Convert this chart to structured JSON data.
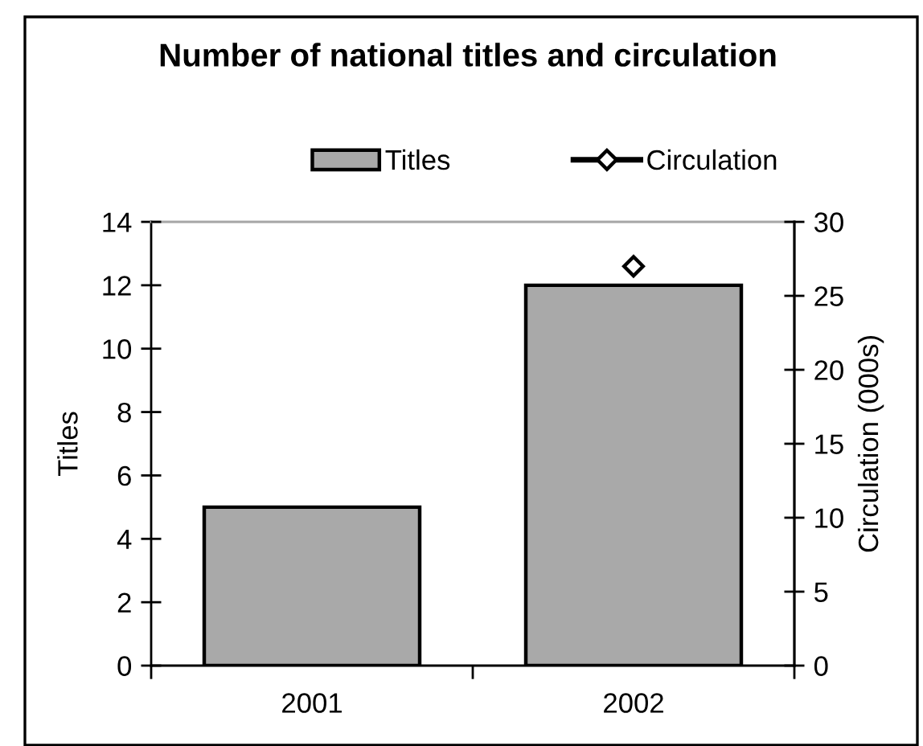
{
  "chart_data": {
    "type": "bar",
    "title": "Number of national titles and circulation",
    "categories": [
      "2001",
      "2002"
    ],
    "ylabel": "Titles",
    "y2label": "Circulation (000s)",
    "series": [
      {
        "name": "Titles",
        "color": "#a9a9a9",
        "values": [
          5,
          12
        ]
      },
      {
        "name": "Circulation",
        "type": "line",
        "axis": "y2",
        "color": "#000000",
        "values": [
          null,
          27
        ]
      }
    ],
    "ylim": [
      0,
      14
    ],
    "yticks": [
      0,
      2,
      4,
      6,
      8,
      10,
      12,
      14
    ],
    "y2lim": [
      0,
      30
    ],
    "y2ticks": [
      0,
      5,
      10,
      15,
      20,
      25,
      30
    ],
    "marker": "diamond",
    "legend": "top",
    "grid": false
  }
}
